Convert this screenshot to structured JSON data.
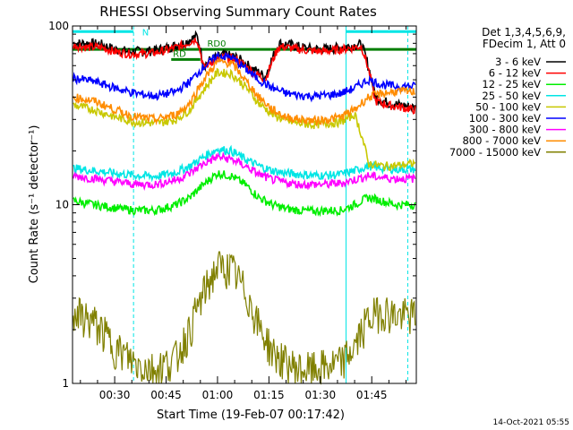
{
  "chart_data": {
    "type": "line",
    "title": "RHESSI Observing Summary Count Rates",
    "xlabel": "Start Time (19-Feb-07 00:17:42)",
    "ylabel": "Count Rate (s⁻¹ detector⁻¹)",
    "yscale": "log",
    "ylim": [
      1,
      100
    ],
    "xlim_minutes": [
      17.7,
      118.0
    ],
    "y_tick_labels": [
      "1",
      "10",
      "100"
    ],
    "y_tick_values": [
      1,
      10,
      100
    ],
    "x_ticks": [
      {
        "label": "00:30",
        "minute": 30
      },
      {
        "label": "00:45",
        "minute": 45
      },
      {
        "label": "01:00",
        "minute": 60
      },
      {
        "label": "01:15",
        "minute": 75
      },
      {
        "label": "01:30",
        "minute": 90
      },
      {
        "label": "01:45",
        "minute": 105
      }
    ],
    "legend_header": [
      "Det 1,3,4,5,6,9,",
      "FDecim 1, Att 0"
    ],
    "legend_position": "right",
    "timestamp": "14-Oct-2021 05:55",
    "flag_bars": [
      {
        "name": "N",
        "color": "#00e5e5",
        "segments": [
          [
            17.7,
            35.5
          ],
          [
            97.5,
            118.0
          ]
        ]
      },
      {
        "name": "RD0",
        "color": "#007d00",
        "segments": [
          [
            17.7,
            55.4
          ],
          [
            55.4,
            75.5
          ],
          [
            75.5,
            118.0
          ]
        ]
      },
      {
        "name": "RD",
        "color": "#007d00",
        "segments": [
          [
            46.5,
            55.0
          ]
        ]
      }
    ],
    "flag_levels": [
      {
        "name": "N",
        "value": 93
      },
      {
        "name": "RD0",
        "value": 74
      },
      {
        "name": "RD",
        "value": 65
      }
    ],
    "dashed_markers_minutes": [
      35.5,
      115.5
    ],
    "solid_markers_minutes": [
      17.7,
      97.5
    ],
    "series": [
      {
        "name": "3 - 6 keV",
        "color": "#000000",
        "x": [
          18,
          22,
          26,
          30,
          34,
          38,
          42,
          46,
          50,
          54,
          56,
          58,
          60,
          62,
          64,
          66,
          68,
          70,
          74,
          78,
          82,
          86,
          90,
          94,
          98,
          102,
          106,
          110,
          114,
          117
        ],
        "values": [
          80,
          80,
          79,
          74,
          72,
          72,
          73,
          76,
          80,
          88,
          60,
          65,
          67,
          69,
          68,
          66,
          62,
          58,
          52,
          80,
          78,
          75,
          74,
          75,
          77,
          79,
          40,
          37,
          36,
          35
        ]
      },
      {
        "name": "6 - 12 keV",
        "color": "#ff0000",
        "x": [
          18,
          22,
          26,
          30,
          34,
          38,
          42,
          46,
          50,
          54,
          56,
          58,
          60,
          62,
          64,
          66,
          68,
          70,
          74,
          78,
          82,
          86,
          90,
          94,
          98,
          102,
          106,
          110,
          114,
          117
        ],
        "values": [
          78,
          76,
          76,
          72,
          70,
          70,
          71,
          74,
          78,
          85,
          58,
          63,
          65,
          67,
          66,
          64,
          60,
          56,
          50,
          77,
          75,
          73,
          72,
          73,
          75,
          77,
          38,
          36,
          35,
          34
        ]
      },
      {
        "name": "12 - 25 keV",
        "color": "#00ee00",
        "x": [
          18,
          24,
          30,
          36,
          42,
          48,
          52,
          56,
          60,
          64,
          68,
          72,
          76,
          80,
          84,
          88,
          92,
          96,
          100,
          104,
          108,
          112,
          117
        ],
        "values": [
          10.5,
          10,
          9.6,
          9.3,
          9.3,
          10,
          11,
          13,
          15,
          14.5,
          13,
          11,
          10,
          9.5,
          9.3,
          9.2,
          9.3,
          9.3,
          10,
          11,
          10.5,
          10,
          10
        ]
      },
      {
        "name": "25 - 50 keV",
        "color": "#00e5e5",
        "x": [
          18,
          24,
          30,
          36,
          42,
          48,
          52,
          56,
          60,
          64,
          68,
          72,
          76,
          80,
          84,
          88,
          92,
          96,
          100,
          104,
          108,
          112,
          117
        ],
        "values": [
          16,
          15.5,
          15,
          14.6,
          14.4,
          15.2,
          16.5,
          18.5,
          20.5,
          20,
          18,
          16.5,
          15.5,
          15,
          14.8,
          14.6,
          14.6,
          14.8,
          15.5,
          16.5,
          16,
          15.8,
          15.8
        ]
      },
      {
        "name": "50 - 100 keV",
        "color": "#c8c800",
        "x": [
          18,
          24,
          30,
          36,
          42,
          48,
          52,
          56,
          60,
          64,
          68,
          72,
          76,
          80,
          84,
          88,
          92,
          96,
          100,
          104,
          108,
          112,
          117
        ],
        "values": [
          36,
          34,
          31,
          29,
          28.5,
          30,
          34,
          44,
          55,
          54,
          46,
          37,
          32,
          29.5,
          28.5,
          28,
          28.5,
          29,
          32,
          17,
          16.5,
          16.5,
          17
        ]
      },
      {
        "name": "100 - 300 keV",
        "color": "#0000ff",
        "x": [
          18,
          24,
          30,
          36,
          42,
          48,
          52,
          56,
          60,
          64,
          68,
          72,
          76,
          80,
          84,
          88,
          92,
          96,
          100,
          104,
          108,
          112,
          117
        ],
        "values": [
          51,
          49,
          45,
          42,
          40.5,
          43,
          49,
          59,
          68,
          67,
          58,
          50,
          45,
          42,
          41,
          40.5,
          41,
          42,
          45,
          50,
          47,
          46,
          46
        ]
      },
      {
        "name": "300 - 800 keV",
        "color": "#ff00ff",
        "x": [
          18,
          24,
          30,
          36,
          42,
          48,
          52,
          56,
          60,
          64,
          68,
          72,
          76,
          80,
          84,
          88,
          92,
          96,
          100,
          104,
          108,
          112,
          117
        ],
        "values": [
          14.5,
          14,
          13.5,
          13,
          13,
          13.8,
          15,
          17,
          18.5,
          18,
          16.5,
          14.8,
          13.8,
          13.3,
          13,
          13,
          13,
          13.2,
          13.8,
          14.5,
          14.2,
          14,
          14
        ]
      },
      {
        "name": "800 - 7000 keV",
        "color": "#ff8c00",
        "x": [
          18,
          24,
          30,
          36,
          42,
          48,
          52,
          56,
          60,
          64,
          68,
          72,
          76,
          80,
          84,
          88,
          92,
          96,
          100,
          104,
          108,
          112,
          117
        ],
        "values": [
          40,
          38,
          34,
          31,
          30,
          32,
          37,
          50,
          63,
          62,
          50,
          40,
          34,
          31,
          30,
          29.5,
          30,
          31,
          34,
          40,
          42,
          43,
          43
        ]
      },
      {
        "name": "7000 - 15000 keV",
        "color": "#808000",
        "x": [
          18,
          24,
          30,
          36,
          42,
          48,
          52,
          56,
          60,
          64,
          68,
          72,
          76,
          80,
          84,
          88,
          92,
          96,
          100,
          104,
          108,
          112,
          117
        ],
        "values": [
          2.5,
          2.2,
          1.6,
          1.3,
          1.2,
          1.4,
          2.0,
          3.2,
          4.5,
          4.4,
          3.3,
          2.1,
          1.5,
          1.3,
          1.2,
          1.2,
          1.25,
          1.3,
          1.6,
          2.3,
          2.6,
          2.4,
          2.4
        ]
      }
    ]
  }
}
